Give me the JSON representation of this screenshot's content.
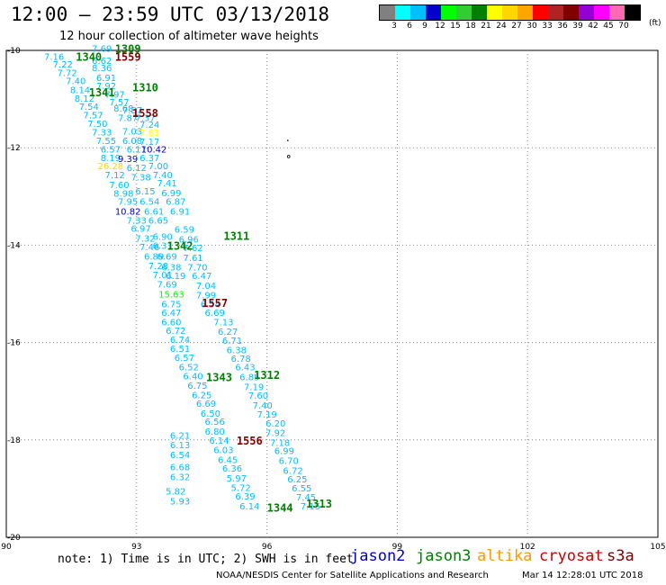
{
  "header": {
    "title": "12:00 – 23:59 UTC 03/13/2018",
    "subtitle": "12 hour collection of altimeter wave heights"
  },
  "colorbar": {
    "unit": "(ft)",
    "labels": [
      "3",
      "6",
      "9",
      "12",
      "15",
      "18",
      "21",
      "24",
      "27",
      "30",
      "33",
      "36",
      "39",
      "42",
      "45",
      "70"
    ],
    "colors": [
      "#808080",
      "#00ffff",
      "#00bfff",
      "#0000cd",
      "#00ff00",
      "#32cd32",
      "#008000",
      "#ffff00",
      "#ffd700",
      "#ffa500",
      "#ff0000",
      "#b22222",
      "#800000",
      "#9400d3",
      "#ff00ff",
      "#ff69b4",
      "#000000"
    ]
  },
  "note": "note: 1) Time is in UTC; 2) SWH is in feet",
  "satellites": [
    {
      "name": "jason2",
      "color": "#0000cc"
    },
    {
      "name": "jason3",
      "color": "#008000"
    },
    {
      "name": "altika",
      "color": "#ff9900"
    },
    {
      "name": "cryosat",
      "color": "#cc0000"
    },
    {
      "name": "s3a",
      "color": "#800000"
    }
  ],
  "footer": {
    "left": "NOAA/NESDIS Center for Satellite Applications and Research",
    "right": "Mar 14 12:28:01 UTC 2018"
  },
  "chart_data": {
    "type": "scatter",
    "xlim": [
      90,
      105
    ],
    "ylim": [
      -20,
      -10
    ],
    "xticks": [
      "90",
      "93",
      "96",
      "99",
      "102",
      "105"
    ],
    "yticks": [
      "-10",
      "-12",
      "-14",
      "-16",
      "-18",
      "-20"
    ],
    "grid": true,
    "wave_heights": [
      {
        "x": 92.2,
        "y": -9.95,
        "v": "7.69",
        "c": "#00bfff"
      },
      {
        "x": 91.1,
        "y": -10.12,
        "v": "7.16",
        "c": "#00bfff"
      },
      {
        "x": 92.2,
        "y": -10.2,
        "v": "6.62",
        "c": "#00bfff"
      },
      {
        "x": 91.3,
        "y": -10.28,
        "v": "7.22",
        "c": "#00bfff"
      },
      {
        "x": 92.2,
        "y": -10.35,
        "v": "8.36",
        "c": "#00bfff"
      },
      {
        "x": 91.4,
        "y": -10.45,
        "v": "7.72",
        "c": "#00bfff"
      },
      {
        "x": 92.3,
        "y": -10.55,
        "v": "6.91",
        "c": "#00bfff"
      },
      {
        "x": 91.6,
        "y": -10.62,
        "v": "7.40",
        "c": "#00bfff"
      },
      {
        "x": 92.3,
        "y": -10.72,
        "v": "7.92",
        "c": "#00bfff"
      },
      {
        "x": 91.7,
        "y": -10.8,
        "v": "8.14",
        "c": "#00bfff"
      },
      {
        "x": 92.5,
        "y": -10.9,
        "v": "7.97",
        "c": "#00bfff"
      },
      {
        "x": 91.8,
        "y": -10.98,
        "v": "8.12",
        "c": "#00bfff"
      },
      {
        "x": 92.6,
        "y": -11.05,
        "v": "7.57",
        "c": "#00bfff"
      },
      {
        "x": 91.9,
        "y": -11.15,
        "v": "7.54",
        "c": "#00bfff"
      },
      {
        "x": 92.7,
        "y": -11.18,
        "v": "8.68",
        "c": "#00bfff"
      },
      {
        "x": 92.9,
        "y": -11.22,
        "v": "7.87",
        "c": "#00bfff"
      },
      {
        "x": 92.0,
        "y": -11.32,
        "v": "7.57",
        "c": "#00bfff"
      },
      {
        "x": 92.8,
        "y": -11.38,
        "v": "7.87",
        "c": "#00bfff"
      },
      {
        "x": 93.2,
        "y": -11.38,
        "v": "7.37",
        "c": "#00bfff"
      },
      {
        "x": 92.1,
        "y": -11.5,
        "v": "7.50",
        "c": "#00bfff"
      },
      {
        "x": 93.3,
        "y": -11.52,
        "v": "7.24",
        "c": "#00bfff"
      },
      {
        "x": 92.2,
        "y": -11.67,
        "v": "7.33",
        "c": "#00bfff"
      },
      {
        "x": 92.9,
        "y": -11.65,
        "v": "7.03",
        "c": "#00bfff"
      },
      {
        "x": 93.3,
        "y": -11.68,
        "v": "7.61",
        "c": "#ffff00"
      },
      {
        "x": 92.3,
        "y": -11.85,
        "v": "7.55",
        "c": "#00bfff"
      },
      {
        "x": 92.9,
        "y": -11.85,
        "v": "6.08",
        "c": "#00bfff"
      },
      {
        "x": 93.3,
        "y": -11.87,
        "v": "7.17",
        "c": "#00bfff"
      },
      {
        "x": 92.4,
        "y": -12.02,
        "v": "6.57",
        "c": "#00bfff"
      },
      {
        "x": 93.0,
        "y": -12.02,
        "v": "6.17",
        "c": "#00bfff"
      },
      {
        "x": 93.4,
        "y": -12.02,
        "v": "10.42",
        "c": "#0000cd"
      },
      {
        "x": 92.4,
        "y": -12.2,
        "v": "8.19",
        "c": "#00bfff"
      },
      {
        "x": 92.8,
        "y": -12.22,
        "v": "9.39",
        "c": "#0000cd"
      },
      {
        "x": 93.3,
        "y": -12.2,
        "v": "6.37",
        "c": "#00bfff"
      },
      {
        "x": 92.4,
        "y": -12.37,
        "v": "26.28",
        "c": "#ffd700"
      },
      {
        "x": 93.0,
        "y": -12.4,
        "v": "6.12",
        "c": "#00bfff"
      },
      {
        "x": 93.5,
        "y": -12.37,
        "v": "7.00",
        "c": "#00bfff"
      },
      {
        "x": 92.5,
        "y": -12.55,
        "v": "7.12",
        "c": "#00bfff"
      },
      {
        "x": 93.1,
        "y": -12.6,
        "v": "7.38",
        "c": "#00bfff"
      },
      {
        "x": 93.6,
        "y": -12.55,
        "v": "7.40",
        "c": "#00bfff"
      },
      {
        "x": 92.6,
        "y": -12.75,
        "v": "7.60",
        "c": "#00bfff"
      },
      {
        "x": 93.7,
        "y": -12.72,
        "v": "7.41",
        "c": "#00bfff"
      },
      {
        "x": 92.7,
        "y": -12.93,
        "v": "8.98",
        "c": "#00bfff"
      },
      {
        "x": 93.2,
        "y": -12.88,
        "v": "6.15",
        "c": "#00bfff"
      },
      {
        "x": 93.8,
        "y": -12.92,
        "v": "6.99",
        "c": "#00bfff"
      },
      {
        "x": 92.8,
        "y": -13.1,
        "v": "7.95",
        "c": "#00bfff"
      },
      {
        "x": 93.3,
        "y": -13.1,
        "v": "6.54",
        "c": "#00bfff"
      },
      {
        "x": 93.9,
        "y": -13.1,
        "v": "6.87",
        "c": "#00bfff"
      },
      {
        "x": 92.8,
        "y": -13.3,
        "v": "10.82",
        "c": "#0000cd"
      },
      {
        "x": 93.4,
        "y": -13.3,
        "v": "6.61",
        "c": "#00bfff"
      },
      {
        "x": 94.0,
        "y": -13.3,
        "v": "6.91",
        "c": "#00bfff"
      },
      {
        "x": 93.0,
        "y": -13.48,
        "v": "7.33",
        "c": "#00bfff"
      },
      {
        "x": 93.5,
        "y": -13.48,
        "v": "6.65",
        "c": "#00bfff"
      },
      {
        "x": 93.1,
        "y": -13.65,
        "v": "6.97",
        "c": "#00bfff"
      },
      {
        "x": 94.1,
        "y": -13.67,
        "v": "6.59",
        "c": "#00bfff"
      },
      {
        "x": 93.2,
        "y": -13.85,
        "v": "7.32",
        "c": "#00bfff"
      },
      {
        "x": 93.6,
        "y": -13.82,
        "v": "6.90",
        "c": "#00bfff"
      },
      {
        "x": 94.2,
        "y": -13.87,
        "v": "6.96",
        "c": "#00bfff"
      },
      {
        "x": 93.3,
        "y": -14.03,
        "v": "7.46",
        "c": "#00bfff"
      },
      {
        "x": 93.6,
        "y": -14.0,
        "v": "6.31",
        "c": "#00bfff"
      },
      {
        "x": 94.3,
        "y": -14.05,
        "v": "7.62",
        "c": "#00bfff"
      },
      {
        "x": 93.4,
        "y": -14.22,
        "v": "6.89",
        "c": "#00bfff"
      },
      {
        "x": 93.7,
        "y": -14.22,
        "v": "6.69",
        "c": "#00bfff"
      },
      {
        "x": 94.3,
        "y": -14.25,
        "v": "7.61",
        "c": "#00bfff"
      },
      {
        "x": 93.5,
        "y": -14.42,
        "v": "7.28",
        "c": "#00bfff"
      },
      {
        "x": 93.8,
        "y": -14.45,
        "v": "6.38",
        "c": "#00bfff"
      },
      {
        "x": 94.4,
        "y": -14.45,
        "v": "7.70",
        "c": "#00bfff"
      },
      {
        "x": 93.6,
        "y": -14.6,
        "v": "7.01",
        "c": "#00bfff"
      },
      {
        "x": 93.9,
        "y": -14.62,
        "v": "6.19",
        "c": "#00bfff"
      },
      {
        "x": 94.5,
        "y": -14.62,
        "v": "6.47",
        "c": "#00bfff"
      },
      {
        "x": 93.7,
        "y": -14.8,
        "v": "7.69",
        "c": "#00bfff"
      },
      {
        "x": 94.6,
        "y": -14.82,
        "v": "7.04",
        "c": "#00bfff"
      },
      {
        "x": 93.8,
        "y": -15.0,
        "v": "15.63",
        "c": "#00ff00"
      },
      {
        "x": 94.6,
        "y": -15.02,
        "v": "7.99",
        "c": "#00bfff"
      },
      {
        "x": 93.8,
        "y": -15.2,
        "v": "6.75",
        "c": "#00bfff"
      },
      {
        "x": 94.7,
        "y": -15.2,
        "v": "6.54",
        "c": "#00bfff"
      },
      {
        "x": 93.8,
        "y": -15.38,
        "v": "6.47",
        "c": "#00bfff"
      },
      {
        "x": 94.8,
        "y": -15.38,
        "v": "6.69",
        "c": "#00bfff"
      },
      {
        "x": 93.8,
        "y": -15.57,
        "v": "6.60",
        "c": "#00bfff"
      },
      {
        "x": 95.0,
        "y": -15.57,
        "v": "7.13",
        "c": "#00bfff"
      },
      {
        "x": 93.9,
        "y": -15.75,
        "v": "6.72",
        "c": "#00bfff"
      },
      {
        "x": 95.1,
        "y": -15.77,
        "v": "6.27",
        "c": "#00bfff"
      },
      {
        "x": 94.0,
        "y": -15.93,
        "v": "6.74",
        "c": "#00bfff"
      },
      {
        "x": 95.2,
        "y": -15.95,
        "v": "6.71",
        "c": "#00bfff"
      },
      {
        "x": 94.0,
        "y": -16.12,
        "v": "6.51",
        "c": "#00bfff"
      },
      {
        "x": 95.3,
        "y": -16.15,
        "v": "6.38",
        "c": "#00bfff"
      },
      {
        "x": 94.1,
        "y": -16.3,
        "v": "6.57",
        "c": "#00bfff"
      },
      {
        "x": 95.4,
        "y": -16.32,
        "v": "6.78",
        "c": "#00bfff"
      },
      {
        "x": 94.2,
        "y": -16.5,
        "v": "6.52",
        "c": "#00bfff"
      },
      {
        "x": 95.5,
        "y": -16.5,
        "v": "6.43",
        "c": "#00bfff"
      },
      {
        "x": 94.3,
        "y": -16.68,
        "v": "6.40",
        "c": "#00bfff"
      },
      {
        "x": 95.6,
        "y": -16.7,
        "v": "6.85",
        "c": "#00bfff"
      },
      {
        "x": 94.4,
        "y": -16.88,
        "v": "6.75",
        "c": "#00bfff"
      },
      {
        "x": 95.7,
        "y": -16.9,
        "v": "7.19",
        "c": "#00bfff"
      },
      {
        "x": 94.5,
        "y": -17.07,
        "v": "6.25",
        "c": "#00bfff"
      },
      {
        "x": 95.8,
        "y": -17.08,
        "v": "7.60",
        "c": "#00bfff"
      },
      {
        "x": 94.6,
        "y": -17.25,
        "v": "6.69",
        "c": "#00bfff"
      },
      {
        "x": 95.9,
        "y": -17.28,
        "v": "7.40",
        "c": "#00bfff"
      },
      {
        "x": 94.7,
        "y": -17.45,
        "v": "6.50",
        "c": "#00bfff"
      },
      {
        "x": 96.0,
        "y": -17.47,
        "v": "7.19",
        "c": "#00bfff"
      },
      {
        "x": 94.8,
        "y": -17.62,
        "v": "6.56",
        "c": "#00bfff"
      },
      {
        "x": 96.2,
        "y": -17.65,
        "v": "6.20",
        "c": "#00bfff"
      },
      {
        "x": 94.8,
        "y": -17.82,
        "v": "6.80",
        "c": "#00bfff"
      },
      {
        "x": 96.2,
        "y": -17.85,
        "v": "7.92",
        "c": "#00bfff"
      },
      {
        "x": 94.9,
        "y": -18.0,
        "v": "6.14",
        "c": "#00bfff"
      },
      {
        "x": 96.3,
        "y": -18.05,
        "v": "7.18",
        "c": "#00bfff"
      },
      {
        "x": 95.0,
        "y": -18.2,
        "v": "6.03",
        "c": "#00bfff"
      },
      {
        "x": 96.4,
        "y": -18.22,
        "v": "6.99",
        "c": "#00bfff"
      },
      {
        "x": 95.1,
        "y": -18.4,
        "v": "6.45",
        "c": "#00bfff"
      },
      {
        "x": 96.5,
        "y": -18.42,
        "v": "6.70",
        "c": "#00bfff"
      },
      {
        "x": 95.2,
        "y": -18.58,
        "v": "6.36",
        "c": "#00bfff"
      },
      {
        "x": 96.6,
        "y": -18.62,
        "v": "6.72",
        "c": "#00bfff"
      },
      {
        "x": 95.3,
        "y": -18.78,
        "v": "5.97",
        "c": "#00bfff"
      },
      {
        "x": 96.7,
        "y": -18.8,
        "v": "6.25",
        "c": "#00bfff"
      },
      {
        "x": 95.4,
        "y": -18.97,
        "v": "5.72",
        "c": "#00bfff"
      },
      {
        "x": 96.8,
        "y": -18.98,
        "v": "6.55",
        "c": "#00bfff"
      },
      {
        "x": 95.5,
        "y": -19.15,
        "v": "6.39",
        "c": "#00bfff"
      },
      {
        "x": 96.9,
        "y": -19.17,
        "v": "7.45",
        "c": "#00bfff"
      },
      {
        "x": 95.6,
        "y": -19.35,
        "v": "6.14",
        "c": "#00bfff"
      },
      {
        "x": 97.0,
        "y": -19.35,
        "v": "7.15",
        "c": "#00bfff"
      },
      {
        "x": 94.0,
        "y": -19.25,
        "v": "5.93",
        "c": "#00bfff"
      },
      {
        "x": 93.9,
        "y": -19.05,
        "v": "5.82",
        "c": "#00bfff"
      },
      {
        "x": 94.0,
        "y": -18.75,
        "v": "6.32",
        "c": "#00bfff"
      },
      {
        "x": 94.0,
        "y": -18.55,
        "v": "6.68",
        "c": "#00bfff"
      },
      {
        "x": 94.0,
        "y": -18.3,
        "v": "6.54",
        "c": "#00bfff"
      },
      {
        "x": 94.0,
        "y": -18.1,
        "v": "6.13",
        "c": "#00bfff"
      },
      {
        "x": 94.0,
        "y": -17.9,
        "v": "6.21",
        "c": "#00bfff"
      }
    ],
    "cycle_labels": [
      {
        "x": 92.8,
        "y": -9.95,
        "v": "1309",
        "c": "#008000"
      },
      {
        "x": 91.9,
        "y": -10.12,
        "v": "1340",
        "c": "#008000"
      },
      {
        "x": 92.8,
        "y": -10.12,
        "v": "1559",
        "c": "#800000"
      },
      {
        "x": 93.2,
        "y": -10.75,
        "v": "1310",
        "c": "#008000"
      },
      {
        "x": 92.2,
        "y": -10.85,
        "v": "1341",
        "c": "#008000"
      },
      {
        "x": 93.2,
        "y": -11.28,
        "v": "1558",
        "c": "#800000"
      },
      {
        "x": 95.3,
        "y": -13.8,
        "v": "1311",
        "c": "#008000"
      },
      {
        "x": 94.0,
        "y": -14.0,
        "v": "1342",
        "c": "#008000"
      },
      {
        "x": 94.8,
        "y": -15.18,
        "v": "1557",
        "c": "#800000"
      },
      {
        "x": 96.0,
        "y": -16.65,
        "v": "1312",
        "c": "#008000"
      },
      {
        "x": 94.9,
        "y": -16.7,
        "v": "1343",
        "c": "#008000"
      },
      {
        "x": 95.6,
        "y": -18.0,
        "v": "1556",
        "c": "#800000"
      },
      {
        "x": 97.2,
        "y": -19.3,
        "v": "1313",
        "c": "#008000"
      },
      {
        "x": 96.3,
        "y": -19.38,
        "v": "1344",
        "c": "#008000"
      }
    ]
  }
}
